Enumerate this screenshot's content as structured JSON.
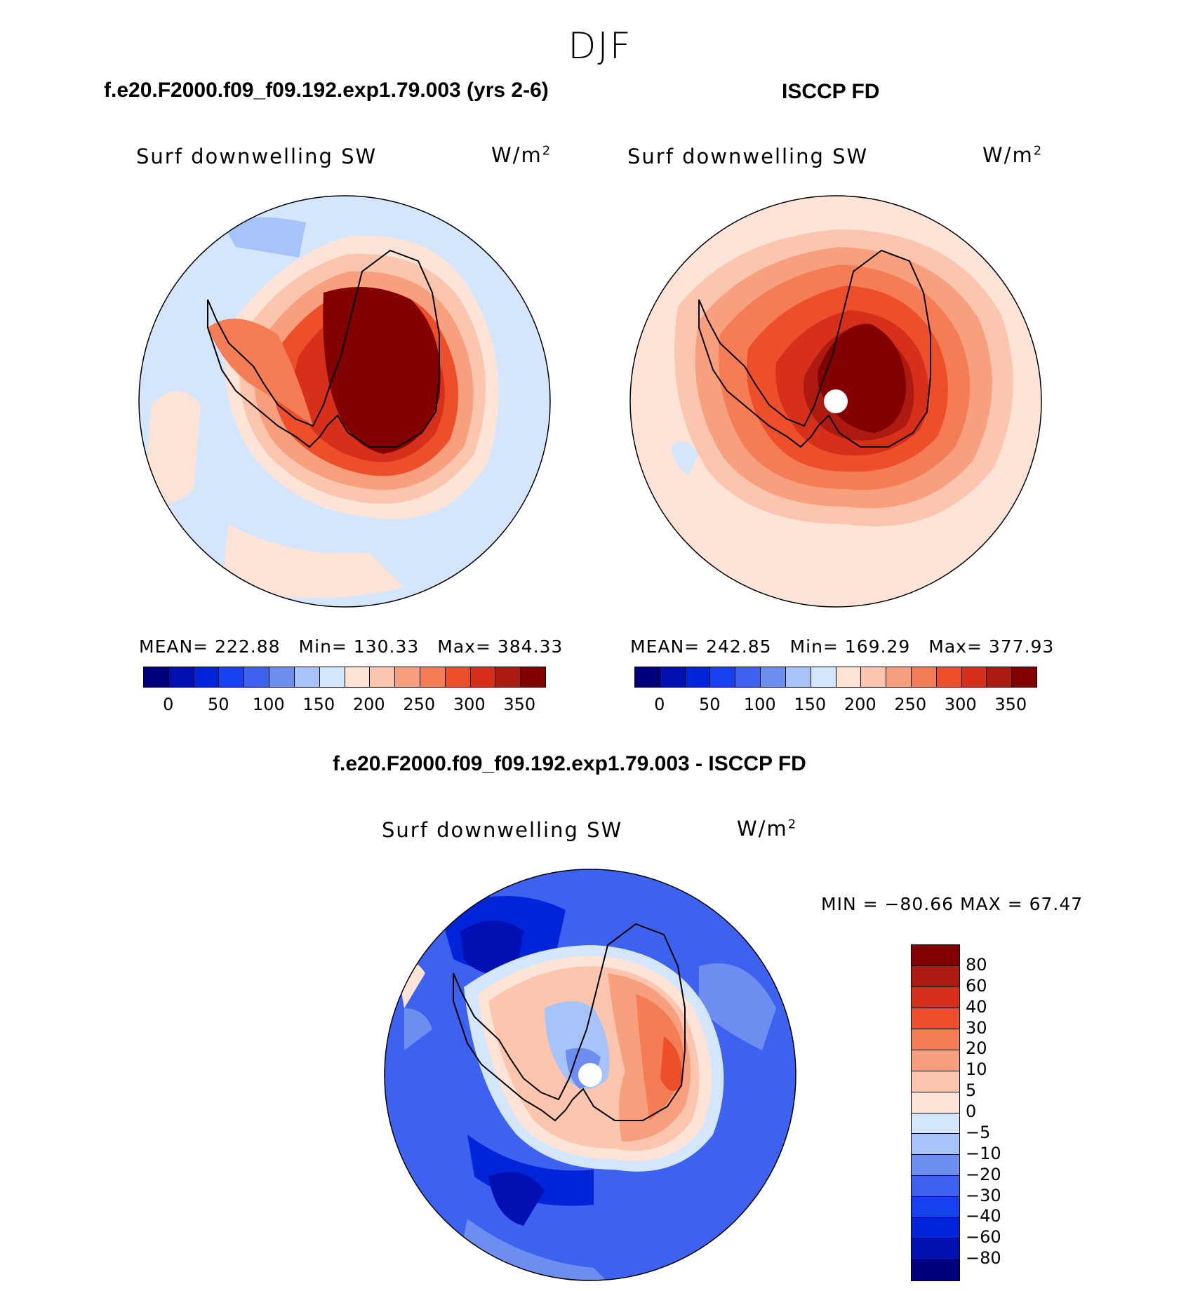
{
  "suptitle": "DJF",
  "panels": {
    "model": {
      "case_title": "f.e20.F2000.f09_f09.192.exp1.79.003 (yrs 2-6)",
      "variable": "Surf downwelling SW",
      "units": "W/m",
      "units_exp": "2",
      "mean": "MEAN= 222.88",
      "min": "Min= 130.33",
      "max": "Max= 384.33"
    },
    "obs": {
      "case_title": "ISCCP FD",
      "variable": "Surf downwelling SW",
      "units": "W/m",
      "units_exp": "2",
      "mean": "MEAN= 242.85",
      "min": "Min= 169.29",
      "max": "Max= 377.93"
    },
    "diff": {
      "case_title": "f.e20.F2000.f09_f09.192.exp1.79.003 - ISCCP FD",
      "variable": "Surf downwelling SW",
      "units": "W/m",
      "units_exp": "2",
      "minmax": "MIN = −80.66 MAX =   67.47"
    }
  },
  "colorbar_abs": {
    "colors": [
      "#00007f",
      "#0010b2",
      "#0025d8",
      "#1640f0",
      "#3e62f0",
      "#6e8df0",
      "#a6c4f9",
      "#d3e6fb",
      "#fde4d6",
      "#fbc5ae",
      "#f8a07e",
      "#f47d55",
      "#ee4f2b",
      "#d6301a",
      "#ad1a0f",
      "#820000"
    ],
    "ticks": [
      "0",
      "50",
      "100",
      "150",
      "200",
      "250",
      "300",
      "350"
    ]
  },
  "colorbar_diff": {
    "colors": [
      "#820000",
      "#ad1a0f",
      "#d6301a",
      "#ee4f2b",
      "#f47d55",
      "#f8a07e",
      "#fbc5ae",
      "#fde4d6",
      "#d3e6fb",
      "#a6c4f9",
      "#6e8df0",
      "#3e62f0",
      "#1640f0",
      "#0025d8",
      "#0010b2",
      "#00007f"
    ],
    "ticks": [
      "80",
      "60",
      "40",
      "30",
      "20",
      "10",
      "5",
      "0",
      "−5",
      "−10",
      "−20",
      "−30",
      "−40",
      "−60",
      "−80"
    ]
  }
}
